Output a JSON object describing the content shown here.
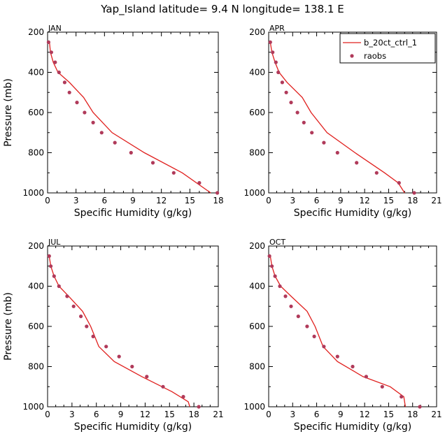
{
  "title": "Yap_Island  latitude= 9.4 N longitude= 138.1 E",
  "colors": {
    "model": "#e0201e",
    "obs": "#b03a5a",
    "axis": "#000000"
  },
  "legend": {
    "model_label": "b_20ct_ctrl_1",
    "obs_label": "raobs"
  },
  "chart_data": [
    {
      "type": "line",
      "panel": "JAN",
      "xlabel": "Specific Humidity (g/kg)",
      "ylabel": "Pressure (mb)",
      "xlim": [
        0,
        18
      ],
      "ylim": [
        200,
        1000
      ],
      "y_reversed": true,
      "xticks": [
        "0",
        "3",
        "6",
        "9",
        "12",
        "15",
        "18"
      ],
      "yticks": [
        "200",
        "400",
        "600",
        "800",
        "1000"
      ],
      "series": [
        {
          "name": "b_20ct_ctrl_1",
          "kind": "line",
          "x": [
            0.2,
            0.3,
            0.6,
            1.1,
            2.3,
            3.8,
            4.8,
            6.8,
            10.2,
            14.2,
            17.2
          ],
          "y": [
            250,
            300,
            350,
            400,
            450,
            525,
            600,
            700,
            800,
            900,
            1000
          ]
        },
        {
          "name": "raobs",
          "kind": "scatter",
          "x": [
            0.1,
            0.4,
            0.8,
            1.2,
            1.8,
            2.3,
            3.1,
            3.9,
            4.8,
            5.7,
            7.1,
            8.8,
            11.1,
            13.3,
            16.0,
            17.9
          ],
          "y": [
            250,
            300,
            350,
            400,
            450,
            500,
            550,
            600,
            650,
            700,
            750,
            800,
            850,
            900,
            950,
            1000
          ]
        }
      ]
    },
    {
      "type": "line",
      "panel": "APR",
      "xlabel": "Specific Humidity (g/kg)",
      "ylabel": "",
      "xlim": [
        0,
        21
      ],
      "ylim": [
        200,
        1000
      ],
      "y_reversed": true,
      "xticks": [
        "0",
        "3",
        "6",
        "9",
        "12",
        "15",
        "18",
        "21"
      ],
      "yticks": [
        "200",
        "400",
        "600",
        "800",
        "1000"
      ],
      "series": [
        {
          "name": "b_20ct_ctrl_1",
          "kind": "line",
          "x": [
            0.2,
            0.4,
            0.8,
            1.3,
            2.3,
            4.2,
            5.3,
            7.3,
            10.8,
            14.5,
            16.2,
            17.0
          ],
          "y": [
            250,
            300,
            350,
            400,
            450,
            525,
            600,
            700,
            800,
            900,
            950,
            1000
          ]
        },
        {
          "name": "raobs",
          "kind": "scatter",
          "x": [
            0.2,
            0.5,
            0.9,
            1.2,
            1.7,
            2.2,
            2.8,
            3.6,
            4.4,
            5.4,
            6.9,
            8.6,
            11.0,
            13.5,
            16.3,
            18.2
          ],
          "y": [
            250,
            300,
            350,
            400,
            450,
            500,
            550,
            600,
            650,
            700,
            750,
            800,
            850,
            900,
            950,
            1000
          ]
        }
      ]
    },
    {
      "type": "line",
      "panel": "JUL",
      "xlabel": "Specific Humidity (g/kg)",
      "ylabel": "Pressure (mb)",
      "xlim": [
        0,
        21
      ],
      "ylim": [
        200,
        1000
      ],
      "y_reversed": true,
      "xticks": [
        "0",
        "3",
        "6",
        "9",
        "12",
        "15",
        "18",
        "21"
      ],
      "yticks": [
        "200",
        "400",
        "600",
        "800",
        "1000"
      ],
      "series": [
        {
          "name": "b_20ct_ctrl_1",
          "kind": "line",
          "x": [
            0.2,
            0.4,
            0.8,
            1.4,
            2.6,
            4.3,
            5.3,
            6.3,
            8.2,
            11.6,
            15.3,
            17.3,
            17.5
          ],
          "y": [
            250,
            300,
            350,
            400,
            450,
            525,
            600,
            700,
            775,
            850,
            925,
            975,
            1000
          ]
        },
        {
          "name": "raobs",
          "kind": "scatter",
          "x": [
            0.2,
            0.4,
            0.8,
            1.4,
            2.4,
            3.2,
            4.1,
            4.8,
            5.6,
            7.2,
            8.8,
            10.4,
            12.2,
            14.2,
            16.7,
            18.6
          ],
          "y": [
            250,
            300,
            350,
            400,
            450,
            500,
            550,
            600,
            650,
            700,
            750,
            800,
            850,
            900,
            950,
            1000
          ]
        }
      ]
    },
    {
      "type": "line",
      "panel": "OCT",
      "xlabel": "Specific Humidity (g/kg)",
      "ylabel": "",
      "xlim": [
        0,
        21
      ],
      "ylim": [
        200,
        1000
      ],
      "y_reversed": true,
      "xticks": [
        "0",
        "3",
        "6",
        "9",
        "12",
        "15",
        "18",
        "21"
      ],
      "yticks": [
        "200",
        "400",
        "600",
        "800",
        "1000"
      ],
      "series": [
        {
          "name": "b_20ct_ctrl_1",
          "kind": "line",
          "x": [
            0.2,
            0.4,
            0.8,
            1.5,
            2.8,
            4.8,
            5.8,
            6.8,
            8.6,
            11.8,
            15.2,
            16.9,
            17.1
          ],
          "y": [
            250,
            300,
            350,
            400,
            450,
            525,
            600,
            700,
            775,
            850,
            900,
            950,
            1000
          ]
        },
        {
          "name": "raobs",
          "kind": "scatter",
          "x": [
            0.1,
            0.4,
            0.8,
            1.4,
            2.1,
            2.8,
            3.7,
            4.8,
            5.7,
            6.9,
            8.6,
            10.5,
            12.2,
            14.2,
            16.6,
            18.9
          ],
          "y": [
            250,
            300,
            350,
            400,
            450,
            500,
            550,
            600,
            650,
            700,
            750,
            800,
            850,
            900,
            950,
            1000
          ]
        }
      ]
    }
  ]
}
